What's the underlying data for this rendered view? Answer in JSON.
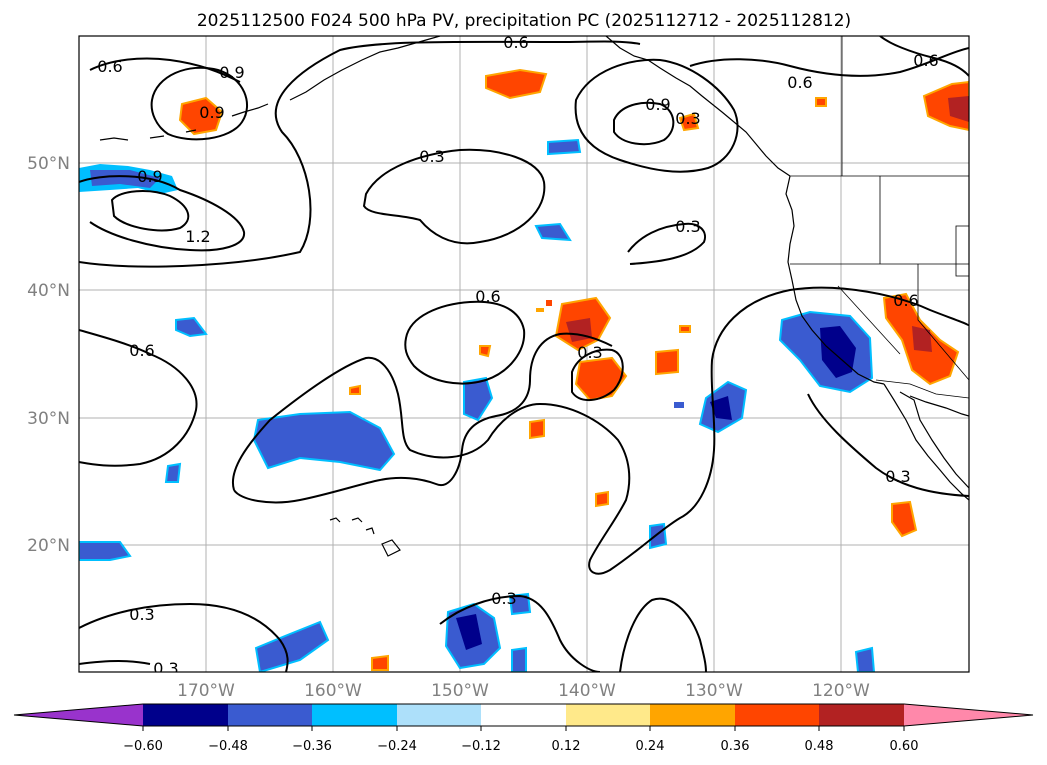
{
  "title": "2025112500 F024 500 hPa PV, precipitation PC (2025112712 - 2025112812)",
  "map": {
    "lon_range": [
      -180,
      -110
    ],
    "lat_range": [
      10,
      60
    ],
    "lat_ticks": [
      "50°N",
      "40°N",
      "30°N",
      "20°N"
    ],
    "lon_ticks": [
      "170°W",
      "160°W",
      "150°W",
      "140°W",
      "130°W",
      "120°W"
    ]
  },
  "contour_labels": [
    "0.6",
    "0.9",
    "0.9",
    "0.6",
    "0.9",
    "0.6",
    "0.6",
    "0.9",
    "1.2",
    "0.3",
    "0.3",
    "0.6",
    "0.6",
    "0.3",
    "0.6",
    "0.3",
    "0.3",
    "0.3",
    "0.3",
    "0.3"
  ],
  "colorbar": {
    "colors": [
      "#9933cc",
      "#00008b",
      "#3a5bd0",
      "#00bfff",
      "#ade0fa",
      "#ffffff",
      "#ffe98a",
      "#ffa500",
      "#ff4500",
      "#b22222",
      "#ff88aa"
    ],
    "tick_labels": [
      "−0.60",
      "−0.48",
      "−0.36",
      "−0.24",
      "−0.12",
      "0.12",
      "0.24",
      "0.36",
      "0.48",
      "0.60"
    ]
  }
}
